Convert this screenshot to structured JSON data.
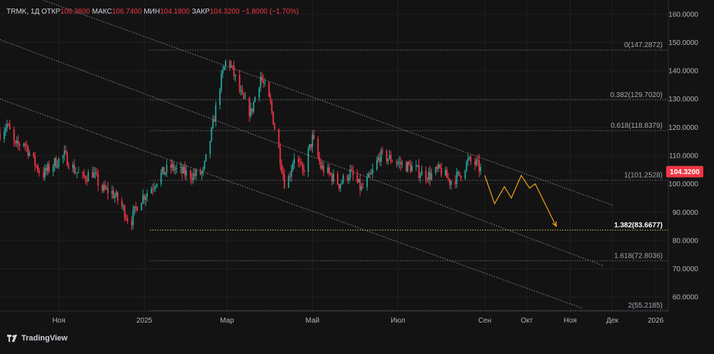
{
  "header": {
    "symbol": "TRMK, 1Д",
    "open_label": "ОТКР",
    "open_value": "106.3800",
    "high_label": "МАКС",
    "high_value": "106.7400",
    "low_label": "МИН",
    "low_value": "104.1800",
    "close_label": "ЗАКР",
    "close_value": "104.3200",
    "change_value": "−1.8000 (−1.70%)"
  },
  "brand": {
    "name": "TradingView",
    "logo_icon": "tradingview-logo-icon"
  },
  "colors": {
    "up": "#26a69a",
    "down": "#f23645",
    "projection": "#f7a21b",
    "price_badge": "#f23645",
    "background": "#131313"
  },
  "chart_data": {
    "type": "candlestick",
    "title": "TRMK, 1Д",
    "ylim": [
      55,
      165
    ],
    "y_ticks": [
      "160.0000",
      "150.0000",
      "140.0000",
      "130.0000",
      "120.0000",
      "110.0000",
      "100.0000",
      "90.0000",
      "80.0000",
      "70.0000",
      "60.0000"
    ],
    "y_tick_values": [
      160,
      150,
      140,
      130,
      120,
      110,
      100,
      90,
      80,
      70,
      60
    ],
    "x_tick_labels": [
      "Ноя",
      "2025",
      "Мар",
      "Май",
      "Июл",
      "Сен",
      "Окт",
      "Ноя",
      "Дек",
      "2026"
    ],
    "x_tick_dates": [
      "2024-11-01",
      "2025-01-01",
      "2025-03-01",
      "2025-05-01",
      "2025-07-01",
      "2025-09-01",
      "2025-10-01",
      "2025-11-01",
      "2025-12-01",
      "2026-01-01"
    ],
    "x_range": [
      "2024-09-20",
      "2026-01-10"
    ],
    "price_path": [
      [
        "2024-09-20",
        118
      ],
      [
        "2024-09-25",
        121
      ],
      [
        "2024-10-01",
        113
      ],
      [
        "2024-10-07",
        115
      ],
      [
        "2024-10-14",
        108
      ],
      [
        "2024-10-20",
        103
      ],
      [
        "2024-10-28",
        107
      ],
      [
        "2024-11-05",
        110
      ],
      [
        "2024-11-12",
        105
      ],
      [
        "2024-11-18",
        102
      ],
      [
        "2024-11-25",
        104
      ],
      [
        "2024-12-02",
        98
      ],
      [
        "2024-12-09",
        97
      ],
      [
        "2024-12-15",
        93
      ],
      [
        "2024-12-22",
        86
      ],
      [
        "2024-12-28",
        94
      ],
      [
        "2025-01-05",
        98
      ],
      [
        "2025-01-12",
        103
      ],
      [
        "2025-01-20",
        106
      ],
      [
        "2025-01-28",
        104
      ],
      [
        "2025-02-05",
        103
      ],
      [
        "2025-02-12",
        104
      ],
      [
        "2025-02-18",
        118
      ],
      [
        "2025-02-24",
        135
      ],
      [
        "2025-03-01",
        145
      ],
      [
        "2025-03-05",
        140
      ],
      [
        "2025-03-12",
        130
      ],
      [
        "2025-03-18",
        125
      ],
      [
        "2025-03-25",
        138
      ],
      [
        "2025-04-01",
        128
      ],
      [
        "2025-04-07",
        112
      ],
      [
        "2025-04-12",
        98
      ],
      [
        "2025-04-18",
        110
      ],
      [
        "2025-04-24",
        104
      ],
      [
        "2025-05-01",
        116
      ],
      [
        "2025-05-07",
        106
      ],
      [
        "2025-05-14",
        103
      ],
      [
        "2025-05-20",
        100
      ],
      [
        "2025-05-28",
        104
      ],
      [
        "2025-06-05",
        98
      ],
      [
        "2025-06-12",
        103
      ],
      [
        "2025-06-18",
        110
      ],
      [
        "2025-06-25",
        109
      ],
      [
        "2025-07-03",
        107
      ],
      [
        "2025-07-10",
        106
      ],
      [
        "2025-07-17",
        104
      ],
      [
        "2025-07-24",
        103
      ],
      [
        "2025-07-31",
        105
      ],
      [
        "2025-08-07",
        101
      ],
      [
        "2025-08-14",
        103
      ],
      [
        "2025-08-20",
        108
      ],
      [
        "2025-08-26",
        107
      ],
      [
        "2025-08-30",
        104.32
      ]
    ],
    "channels": [
      {
        "name": "upper-channel-line",
        "points": [
          [
            "2024-10-15",
            166
          ],
          [
            "2025-12-01",
            92.5
          ]
        ]
      },
      {
        "name": "middle-channel-line",
        "points": [
          [
            "2024-09-20",
            151
          ],
          [
            "2025-11-25",
            71
          ]
        ]
      },
      {
        "name": "lower-channel-line",
        "points": [
          [
            "2024-09-20",
            130
          ],
          [
            "2025-11-10",
            56
          ]
        ]
      }
    ],
    "fibonacci": [
      {
        "ratio": "0(147.2872)",
        "value": 147.2872,
        "highlight": false
      },
      {
        "ratio": "0.382(129.7020)",
        "value": 129.702,
        "highlight": false
      },
      {
        "ratio": "0.618(118.8379)",
        "value": 118.8379,
        "highlight": false
      },
      {
        "ratio": "1(101.2528)",
        "value": 101.2528,
        "highlight": false
      },
      {
        "ratio": "1.382(83.6677)",
        "value": 83.6677,
        "highlight": true
      },
      {
        "ratio": "1.618(72.8036)",
        "value": 72.8036,
        "highlight": false
      },
      {
        "ratio": "2(55.2185)",
        "value": 55.2185,
        "highlight": false
      }
    ],
    "fib_start": "2025-01-05",
    "projection_path": [
      [
        "2025-09-01",
        103
      ],
      [
        "2025-09-08",
        93
      ],
      [
        "2025-09-15",
        99
      ],
      [
        "2025-09-20",
        95
      ],
      [
        "2025-09-27",
        103
      ],
      [
        "2025-10-03",
        98.5
      ],
      [
        "2025-10-07",
        100
      ],
      [
        "2025-10-22",
        85
      ]
    ],
    "last_price": {
      "value": 104.32,
      "label": "104.3200"
    }
  }
}
